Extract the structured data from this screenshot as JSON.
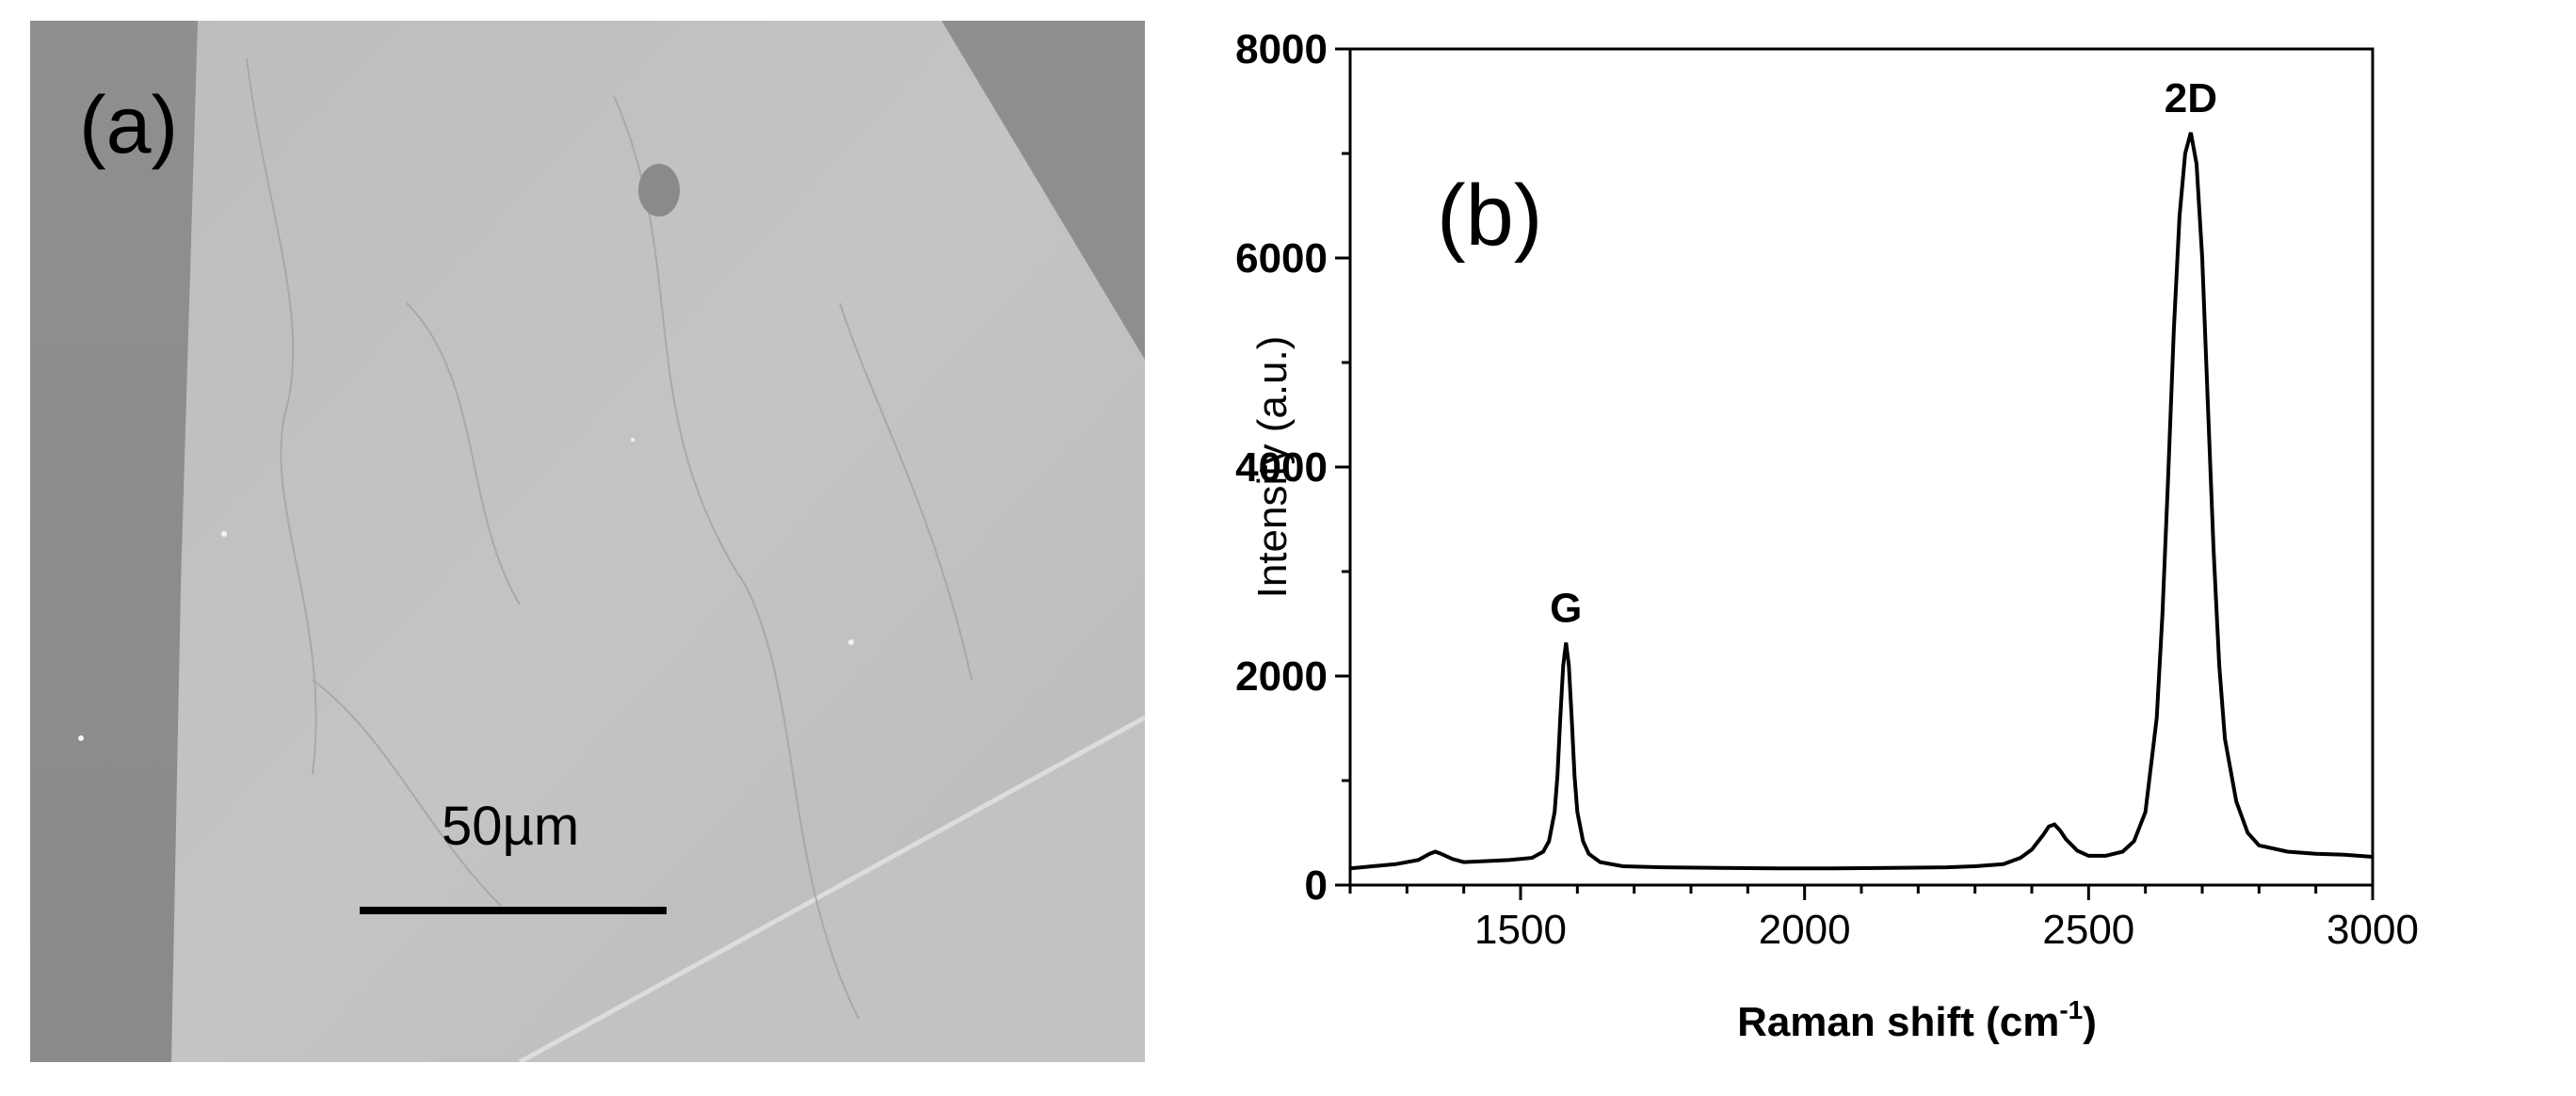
{
  "panel_a": {
    "label": "(a)",
    "scale_bar_label": "50µm"
  },
  "chart_data": {
    "type": "line",
    "panel_label": "(b)",
    "title": "",
    "xlabel": "Raman shift (cm",
    "xlabel_superscript": "-1",
    "xlabel_suffix": ")",
    "ylabel": "Intensity (a.u.)",
    "xlim": [
      1200,
      3000
    ],
    "ylim": [
      0,
      8000
    ],
    "xticks": [
      1500,
      2000,
      2500,
      3000
    ],
    "yticks": [
      0,
      2000,
      4000,
      6000,
      8000
    ],
    "grid": false,
    "annotations": [
      {
        "text": "G",
        "x": 1580,
        "y": 2320
      },
      {
        "text": "2D",
        "x": 2680,
        "y": 7200
      }
    ],
    "series": [
      {
        "color": "#000000",
        "x": [
          1200,
          1240,
          1280,
          1320,
          1340,
          1350,
          1360,
          1380,
          1400,
          1440,
          1480,
          1520,
          1540,
          1550,
          1560,
          1565,
          1570,
          1575,
          1580,
          1585,
          1590,
          1595,
          1600,
          1610,
          1620,
          1640,
          1680,
          1750,
          1850,
          1950,
          2050,
          2150,
          2250,
          2300,
          2350,
          2380,
          2400,
          2420,
          2430,
          2440,
          2450,
          2460,
          2480,
          2500,
          2530,
          2560,
          2580,
          2600,
          2620,
          2630,
          2640,
          2650,
          2660,
          2670,
          2680,
          2690,
          2700,
          2710,
          2720,
          2730,
          2740,
          2760,
          2780,
          2800,
          2850,
          2900,
          2950,
          3000
        ],
        "y": [
          160,
          180,
          200,
          240,
          300,
          320,
          300,
          250,
          220,
          230,
          240,
          260,
          320,
          420,
          700,
          1050,
          1600,
          2100,
          2320,
          2100,
          1600,
          1050,
          700,
          420,
          300,
          220,
          180,
          170,
          165,
          160,
          160,
          165,
          170,
          180,
          200,
          260,
          340,
          480,
          560,
          580,
          520,
          440,
          330,
          280,
          280,
          320,
          420,
          700,
          1600,
          2600,
          3900,
          5300,
          6400,
          7000,
          7200,
          6900,
          6000,
          4600,
          3200,
          2100,
          1400,
          800,
          500,
          380,
          320,
          300,
          290,
          270
        ]
      }
    ]
  }
}
